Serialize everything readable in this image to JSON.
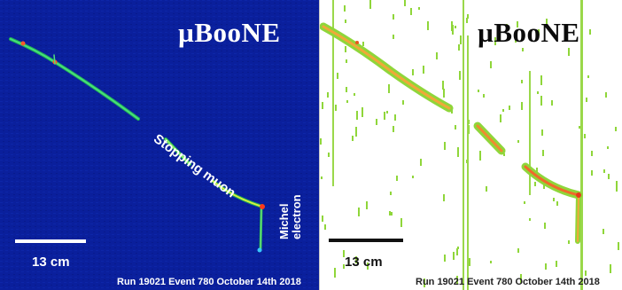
{
  "left_panel": {
    "logo": "µBooNE",
    "annotation_muon": "Stopping muon",
    "annotation_michel_line1": "Michel",
    "annotation_michel_line2": "electron",
    "scale_label": "13 cm",
    "run_info": "Run 19021 Event 780 October 14th 2018",
    "background_color": "#0a1f9c",
    "track_color": "#2ad16a"
  },
  "right_panel": {
    "logo": "µBooNE",
    "scale_label": "13 cm",
    "run_info": "Run 19021 Event 780 October 14th 2018",
    "background_color": "#ffffff",
    "hit_color": "#8fd63a",
    "track_color": "#f08a30"
  }
}
